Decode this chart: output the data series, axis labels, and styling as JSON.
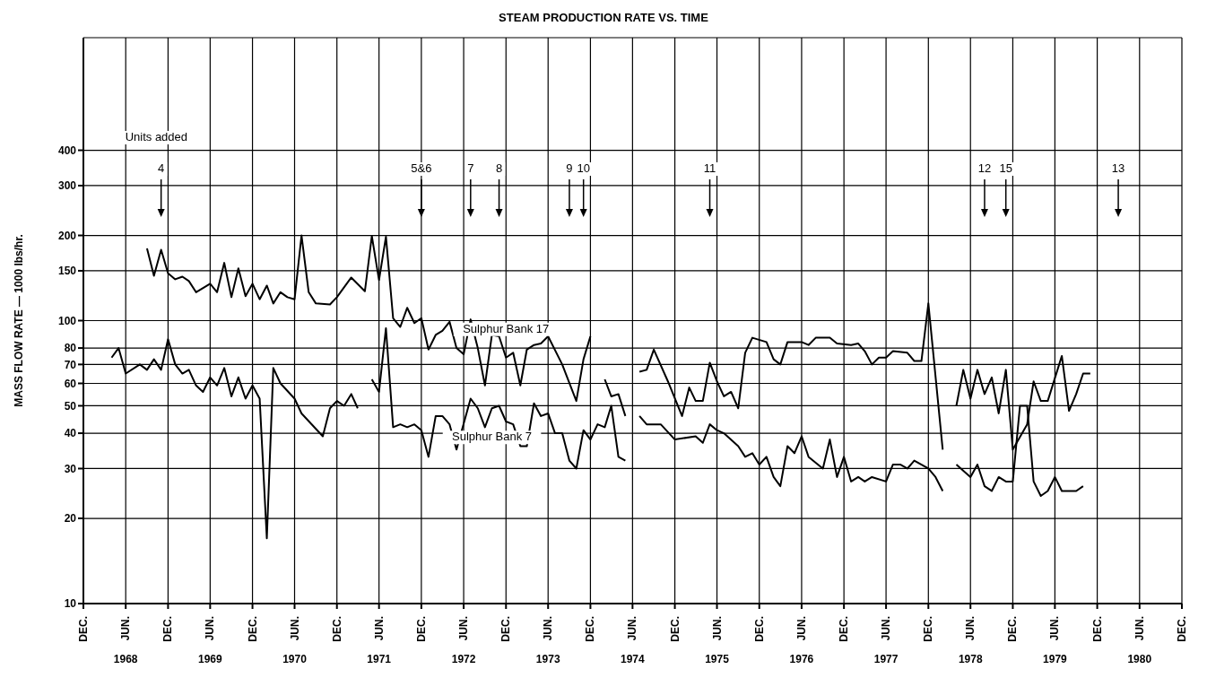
{
  "chart_data": {
    "type": "line",
    "title": "STEAM PRODUCTION RATE VS. TIME",
    "ylabel": "MASS FLOW RATE — 1000 lbs/hr.",
    "annotations": [
      "Units added",
      {
        "text": "4",
        "x": "1968-11"
      },
      {
        "text": "5&6",
        "x": "1971-12"
      },
      {
        "text": "7",
        "x": "1972-07"
      },
      {
        "text": "8",
        "x": "1972-11"
      },
      {
        "text": "9",
        "x": "1973-09"
      },
      {
        "text": "10",
        "x": "1973-11"
      },
      {
        "text": "11",
        "x": "1975-05"
      },
      {
        "text": "12",
        "x": "1978-08"
      },
      {
        "text": "15",
        "x": "1978-11"
      },
      {
        "text": "13",
        "x": "1980-03"
      }
    ],
    "series": [
      {
        "name": "Sulphur Bank 17",
        "color": "#000000",
        "x": [
          "1968-09",
          "1968-10",
          "1968-11",
          "1968-12",
          "1969-01",
          "1969-02",
          "1969-03",
          "1969-04",
          "1969-06",
          "1969-07",
          "1969-08",
          "1969-09",
          "1969-10",
          "1969-11",
          "1969-12",
          "1970-01",
          "1970-02",
          "1970-03",
          "1970-04",
          "1970-05",
          "1970-06",
          "1970-07",
          "1970-08",
          "1970-09",
          "1970-11",
          "1970-12",
          "1971-02",
          "1971-04",
          "1971-05",
          "1971-06",
          "1971-07",
          "1971-08",
          "1971-09",
          "1971-10",
          "1971-11",
          "1971-12",
          "1972-01",
          "1972-02",
          "1972-03",
          "1972-04",
          "1972-05",
          "1972-06",
          "1972-07",
          "1972-08",
          "1972-09",
          "1972-10",
          "1972-11",
          "1972-12",
          "1973-01",
          "1973-02",
          "1973-03",
          "1973-04",
          "1973-05",
          "1973-06",
          "1973-08",
          "1973-10",
          "1973-11",
          "1973-12",
          "1974-01",
          "1974-02",
          "1974-03",
          "1974-04",
          "1974-05",
          "1974-06",
          "1974-07",
          "1974-08",
          "1974-09",
          "1974-11",
          "1975-01",
          "1975-02",
          "1975-03",
          "1975-04",
          "1975-05",
          "1975-06",
          "1975-07",
          "1975-08",
          "1975-09",
          "1975-10",
          "1975-11",
          "1976-01",
          "1976-02",
          "1976-03",
          "1976-04",
          "1976-06",
          "1976-07",
          "1976-08",
          "1976-10",
          "1976-11",
          "1977-01",
          "1977-02",
          "1977-03",
          "1977-04",
          "1977-05",
          "1977-06",
          "1977-07",
          "1977-09",
          "1977-10",
          "1977-11",
          "1977-12",
          "1978-02",
          "1978-03",
          "1978-04",
          "1978-05",
          "1978-06",
          "1978-07",
          "1978-08",
          "1978-09",
          "1978-10",
          "1978-11",
          "1978-12",
          "1979-02",
          "1979-03",
          "1979-04",
          "1979-05",
          "1979-07",
          "1979-08",
          "1979-09",
          "1979-10",
          "1979-11"
        ],
        "values": [
          180,
          144,
          178,
          147,
          140,
          143,
          138,
          126,
          135,
          126,
          160,
          121,
          153,
          122,
          135,
          119,
          133,
          115,
          126,
          121,
          119,
          200,
          126,
          115,
          114,
          121,
          142,
          127,
          199,
          139,
          198,
          102,
          95,
          111,
          98,
          102,
          79,
          89,
          92,
          99,
          80,
          76,
          101,
          80,
          59,
          89,
          88,
          74,
          77,
          59,
          79,
          82,
          83,
          88,
          70,
          52,
          73,
          88,
          null,
          62,
          54,
          55,
          46,
          null,
          66,
          67,
          79,
          61,
          46,
          58,
          52,
          52,
          71,
          61,
          54,
          56,
          49,
          77,
          87,
          84,
          73,
          70,
          84,
          84,
          82,
          87,
          87,
          83,
          82,
          83,
          78,
          70,
          74,
          74,
          78,
          77,
          72,
          72,
          115,
          35,
          null,
          50,
          67,
          53,
          67,
          55,
          63,
          47,
          67,
          35,
          43,
          61,
          52,
          52,
          75,
          48,
          55,
          65,
          65
        ]
      },
      {
        "name": "Sulphur Bank 7",
        "color": "#000000",
        "x": [
          "1968-04",
          "1968-05",
          "1968-06",
          "1968-08",
          "1968-09",
          "1968-10",
          "1968-11",
          "1968-12",
          "1969-01",
          "1969-02",
          "1969-03",
          "1969-04",
          "1969-05",
          "1969-06",
          "1969-07",
          "1969-08",
          "1969-09",
          "1969-10",
          "1969-11",
          "1969-12",
          "1970-01",
          "1970-02",
          "1970-03",
          "1970-04",
          "1970-06",
          "1970-07",
          "1970-10",
          "1970-11",
          "1970-12",
          "1971-01",
          "1971-02",
          "1971-03",
          "1971-04",
          "1971-05",
          "1971-06",
          "1971-07",
          "1971-08",
          "1971-09",
          "1971-10",
          "1971-11",
          "1971-12",
          "1972-01",
          "1972-02",
          "1972-03",
          "1972-04",
          "1972-05",
          "1972-07",
          "1972-08",
          "1972-09",
          "1972-10",
          "1972-11",
          "1972-12",
          "1973-01",
          "1973-02",
          "1973-03",
          "1973-04",
          "1973-05",
          "1973-06",
          "1973-07",
          "1973-08",
          "1973-09",
          "1973-10",
          "1973-11",
          "1973-12",
          "1974-01",
          "1974-02",
          "1974-03",
          "1974-04",
          "1974-05",
          "1974-06",
          "1974-07",
          "1974-08",
          "1974-10",
          "1974-12",
          "1975-03",
          "1975-04",
          "1975-05",
          "1975-06",
          "1975-07",
          "1975-09",
          "1975-10",
          "1975-11",
          "1975-12",
          "1976-01",
          "1976-02",
          "1976-03",
          "1976-04",
          "1976-05",
          "1976-06",
          "1976-07",
          "1976-09",
          "1976-10",
          "1976-11",
          "1976-12",
          "1977-01",
          "1977-02",
          "1977-03",
          "1977-04",
          "1977-06",
          "1977-07",
          "1977-08",
          "1977-09",
          "1977-10",
          "1977-12",
          "1978-01",
          "1978-02",
          "1978-03",
          "1978-04",
          "1978-06",
          "1978-07",
          "1978-08",
          "1978-09",
          "1978-10",
          "1978-11",
          "1978-12",
          "1979-01",
          "1979-02",
          "1979-03",
          "1979-04",
          "1979-05",
          "1979-06",
          "1979-07",
          "1979-09",
          "1979-10"
        ],
        "values": [
          74,
          80,
          65,
          70,
          67,
          73,
          67,
          86,
          70,
          65,
          67,
          59,
          56,
          63,
          59,
          68,
          54,
          63,
          53,
          59,
          53,
          17,
          68,
          60,
          53,
          47,
          39,
          49,
          52,
          50,
          55,
          49,
          null,
          62,
          56,
          94,
          42,
          43,
          42,
          43,
          41,
          33,
          46,
          46,
          43,
          35,
          53,
          49,
          42,
          49,
          50,
          44,
          43,
          36,
          36,
          51,
          46,
          47,
          40,
          40,
          32,
          30,
          41,
          38,
          43,
          42,
          50,
          33,
          32,
          null,
          46,
          43,
          43,
          38,
          39,
          37,
          43,
          41,
          40,
          36,
          33,
          34,
          31,
          33,
          28,
          26,
          36,
          34,
          39,
          33,
          30,
          38,
          28,
          33,
          27,
          28,
          27,
          28,
          27,
          31,
          31,
          30,
          32,
          30,
          28,
          25,
          null,
          31,
          28,
          31,
          26,
          25,
          28,
          27,
          27,
          50,
          50,
          27,
          24,
          25,
          28,
          25,
          25,
          26
        ]
      }
    ],
    "xlim": [
      "1967-12",
      "1980-12"
    ],
    "xticks": [
      {
        "value": "1967-12",
        "label": "DEC."
      },
      {
        "value": "1968-06",
        "label": "JUN."
      },
      {
        "value": "1968-12",
        "label": "DEC."
      },
      {
        "value": "1969-06",
        "label": "JUN."
      },
      {
        "value": "1969-12",
        "label": "DEC."
      },
      {
        "value": "1970-06",
        "label": "JUN."
      },
      {
        "value": "1970-12",
        "label": "DEC."
      },
      {
        "value": "1971-06",
        "label": "JUN."
      },
      {
        "value": "1971-12",
        "label": "DEC."
      },
      {
        "value": "1972-06",
        "label": "JUN."
      },
      {
        "value": "1972-12",
        "label": "DEC."
      },
      {
        "value": "1973-06",
        "label": "JUN."
      },
      {
        "value": "1973-12",
        "label": "DEC."
      },
      {
        "value": "1974-06",
        "label": "JUN."
      },
      {
        "value": "1974-12",
        "label": "DEC."
      },
      {
        "value": "1975-06",
        "label": "JUN."
      },
      {
        "value": "1975-12",
        "label": "DEC."
      },
      {
        "value": "1976-06",
        "label": "JUN."
      },
      {
        "value": "1976-12",
        "label": "DEC."
      },
      {
        "value": "1977-06",
        "label": "JUN."
      },
      {
        "value": "1977-12",
        "label": "DEC."
      },
      {
        "value": "1978-06",
        "label": "JUN."
      },
      {
        "value": "1978-12",
        "label": "DEC."
      },
      {
        "value": "1979-06",
        "label": "JUN."
      },
      {
        "value": "1979-12",
        "label": "DEC."
      },
      {
        "value": "1980-06",
        "label": "JUN."
      },
      {
        "value": "1980-12",
        "label": "DEC."
      }
    ],
    "x2lim": [
      "1967-12",
      "1980-12"
    ],
    "x2ticks": [
      {
        "value": "1968-06",
        "label": "1968"
      },
      {
        "value": "1969-06",
        "label": "1969"
      },
      {
        "value": "1970-06",
        "label": "1970"
      },
      {
        "value": "1971-06",
        "label": "1971"
      },
      {
        "value": "1972-06",
        "label": "1972"
      },
      {
        "value": "1973-06",
        "label": "1973"
      },
      {
        "value": "1974-06",
        "label": "1974"
      },
      {
        "value": "1975-06",
        "label": "1975"
      },
      {
        "value": "1976-06",
        "label": "1976"
      },
      {
        "value": "1977-06",
        "label": "1977"
      },
      {
        "value": "1978-06",
        "label": "1978"
      },
      {
        "value": "1979-06",
        "label": "1979"
      },
      {
        "value": "1980-06",
        "label": "1980"
      }
    ],
    "ylim": [
      10,
      1000
    ],
    "yticks": [
      10,
      20,
      30,
      40,
      50,
      60,
      70,
      80,
      100,
      150,
      200,
      300,
      400
    ],
    "log": "y",
    "grid": true
  }
}
